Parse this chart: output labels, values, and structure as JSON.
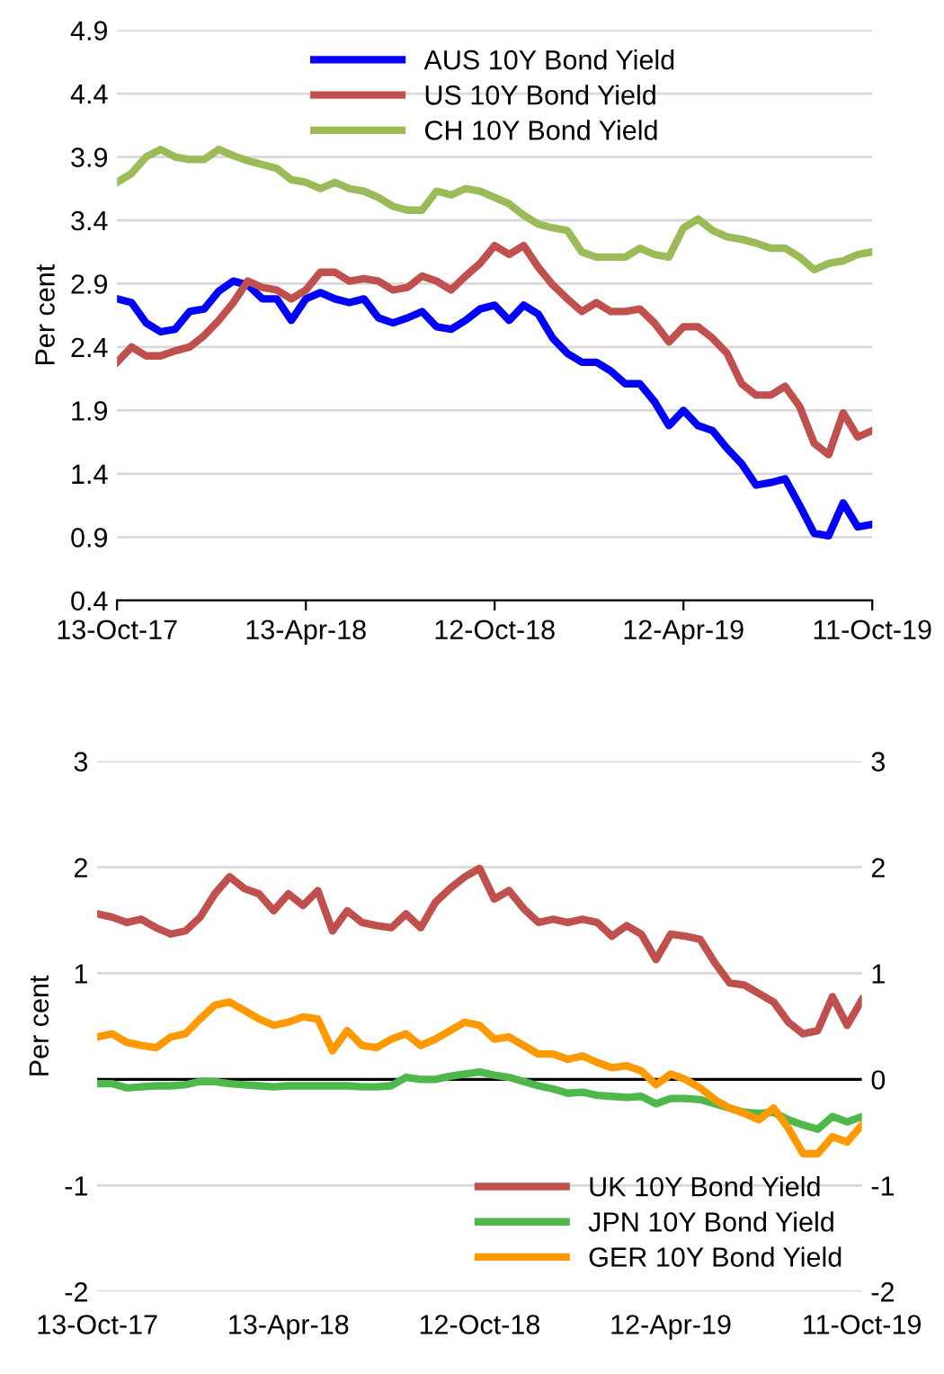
{
  "chart_data": [
    {
      "type": "line",
      "ylabel": "Per cent",
      "xlim": [
        "2017-10-13",
        "2019-10-11"
      ],
      "ylim": [
        0.4,
        4.9
      ],
      "yticks": [
        0.4,
        0.9,
        1.4,
        1.9,
        2.4,
        2.9,
        3.4,
        3.9,
        4.4,
        4.9
      ],
      "xticks": [
        {
          "value": "2017-10-13",
          "label": "13-Oct-17"
        },
        {
          "value": "2018-04-13",
          "label": "13-Apr-18"
        },
        {
          "value": "2018-10-12",
          "label": "12-Oct-18"
        },
        {
          "value": "2019-04-12",
          "label": "12-Apr-19"
        },
        {
          "value": "2019-10-11",
          "label": "11-Oct-19"
        }
      ],
      "grid": "y",
      "legend": "top",
      "line_style": "solid",
      "marker": "none",
      "x": [
        "2017-10-13",
        "2017-10-27",
        "2017-11-10",
        "2017-11-24",
        "2017-12-08",
        "2017-12-22",
        "2018-01-05",
        "2018-01-19",
        "2018-02-02",
        "2018-02-16",
        "2018-03-02",
        "2018-03-16",
        "2018-03-30",
        "2018-04-13",
        "2018-04-27",
        "2018-05-11",
        "2018-05-25",
        "2018-06-08",
        "2018-06-22",
        "2018-07-06",
        "2018-07-20",
        "2018-08-03",
        "2018-08-17",
        "2018-08-31",
        "2018-09-14",
        "2018-09-28",
        "2018-10-12",
        "2018-10-26",
        "2018-11-09",
        "2018-11-23",
        "2018-12-07",
        "2018-12-21",
        "2019-01-04",
        "2019-01-18",
        "2019-02-01",
        "2019-02-15",
        "2019-03-01",
        "2019-03-15",
        "2019-03-29",
        "2019-04-12",
        "2019-04-26",
        "2019-05-10",
        "2019-05-24",
        "2019-06-07",
        "2019-06-21",
        "2019-07-05",
        "2019-07-19",
        "2019-08-02",
        "2019-08-16",
        "2019-08-30",
        "2019-09-13",
        "2019-09-27",
        "2019-10-11"
      ],
      "series": [
        {
          "name": "AUS 10Y Bond Yield",
          "color": "#0000ff",
          "values": [
            2.78,
            2.75,
            2.59,
            2.52,
            2.54,
            2.68,
            2.7,
            2.84,
            2.92,
            2.89,
            2.78,
            2.78,
            2.61,
            2.78,
            2.83,
            2.78,
            2.75,
            2.78,
            2.63,
            2.59,
            2.63,
            2.68,
            2.56,
            2.54,
            2.61,
            2.7,
            2.73,
            2.61,
            2.73,
            2.66,
            2.47,
            2.35,
            2.28,
            2.28,
            2.21,
            2.11,
            2.11,
            1.97,
            1.78,
            1.9,
            1.78,
            1.74,
            1.6,
            1.48,
            1.31,
            1.33,
            1.36,
            1.15,
            0.93,
            0.91,
            1.17,
            0.98,
            1.0
          ]
        },
        {
          "name": "US 10Y Bond Yield",
          "color": "#c0504d",
          "values": [
            2.28,
            2.4,
            2.33,
            2.33,
            2.37,
            2.4,
            2.49,
            2.61,
            2.75,
            2.92,
            2.87,
            2.85,
            2.78,
            2.85,
            2.99,
            2.99,
            2.92,
            2.94,
            2.92,
            2.85,
            2.87,
            2.96,
            2.92,
            2.85,
            2.96,
            3.06,
            3.2,
            3.13,
            3.2,
            3.03,
            2.89,
            2.78,
            2.68,
            2.75,
            2.68,
            2.68,
            2.7,
            2.59,
            2.44,
            2.56,
            2.56,
            2.47,
            2.35,
            2.11,
            2.02,
            2.02,
            2.09,
            1.93,
            1.64,
            1.55,
            1.88,
            1.69,
            1.74
          ]
        },
        {
          "name": "CH 10Y Bond Yield",
          "color": "#9bbb59",
          "values": [
            3.7,
            3.77,
            3.9,
            3.96,
            3.9,
            3.88,
            3.88,
            3.96,
            3.91,
            3.87,
            3.84,
            3.81,
            3.72,
            3.7,
            3.65,
            3.7,
            3.65,
            3.63,
            3.58,
            3.51,
            3.48,
            3.48,
            3.63,
            3.6,
            3.65,
            3.63,
            3.58,
            3.53,
            3.44,
            3.37,
            3.34,
            3.32,
            3.15,
            3.11,
            3.11,
            3.11,
            3.18,
            3.13,
            3.11,
            3.34,
            3.41,
            3.32,
            3.27,
            3.25,
            3.22,
            3.18,
            3.18,
            3.11,
            3.01,
            3.06,
            3.08,
            3.13,
            3.15
          ]
        }
      ]
    },
    {
      "type": "line",
      "ylabel": "Per cent",
      "xlim": [
        "2017-10-13",
        "2019-10-11"
      ],
      "ylim": [
        -2,
        3
      ],
      "yticks": [
        -2,
        -1,
        1,
        2,
        3
      ],
      "y2lim": [
        -2,
        3
      ],
      "y2ticks": [
        -2,
        -1,
        0,
        1,
        2,
        3
      ],
      "xticks": [
        {
          "value": "2017-10-13",
          "label": "13-Oct-17"
        },
        {
          "value": "2018-04-13",
          "label": "13-Apr-18"
        },
        {
          "value": "2018-10-12",
          "label": "12-Oct-18"
        },
        {
          "value": "2019-04-12",
          "label": "12-Apr-19"
        },
        {
          "value": "2019-10-11",
          "label": "11-Oct-19"
        }
      ],
      "grid": "y",
      "legend": "bottom right",
      "line_style": "solid",
      "marker": "none",
      "x": [
        "2017-10-13",
        "2017-10-27",
        "2017-11-10",
        "2017-11-24",
        "2017-12-08",
        "2017-12-22",
        "2018-01-05",
        "2018-01-19",
        "2018-02-02",
        "2018-02-16",
        "2018-03-02",
        "2018-03-16",
        "2018-03-30",
        "2018-04-13",
        "2018-04-27",
        "2018-05-11",
        "2018-05-25",
        "2018-06-08",
        "2018-06-22",
        "2018-07-06",
        "2018-07-20",
        "2018-08-03",
        "2018-08-17",
        "2018-08-31",
        "2018-09-14",
        "2018-09-28",
        "2018-10-12",
        "2018-10-26",
        "2018-11-09",
        "2018-11-23",
        "2018-12-07",
        "2018-12-21",
        "2019-01-04",
        "2019-01-18",
        "2019-02-01",
        "2019-02-15",
        "2019-03-01",
        "2019-03-15",
        "2019-03-29",
        "2019-04-12",
        "2019-04-26",
        "2019-05-10",
        "2019-05-24",
        "2019-06-07",
        "2019-06-21",
        "2019-07-05",
        "2019-07-19",
        "2019-08-02",
        "2019-08-16",
        "2019-08-30",
        "2019-09-13",
        "2019-09-27",
        "2019-10-11"
      ],
      "series": [
        {
          "name": "UK 10Y Bond Yield",
          "color": "#c0504d",
          "axis": "y2",
          "values": [
            1.56,
            1.53,
            1.48,
            1.51,
            1.43,
            1.37,
            1.4,
            1.53,
            1.75,
            1.91,
            1.8,
            1.75,
            1.59,
            1.75,
            1.64,
            1.78,
            1.4,
            1.59,
            1.48,
            1.45,
            1.43,
            1.56,
            1.43,
            1.67,
            1.8,
            1.91,
            1.99,
            1.7,
            1.78,
            1.61,
            1.48,
            1.51,
            1.48,
            1.51,
            1.48,
            1.35,
            1.45,
            1.37,
            1.13,
            1.37,
            1.35,
            1.32,
            1.1,
            0.91,
            0.89,
            0.81,
            0.73,
            0.54,
            0.43,
            0.46,
            0.78,
            0.51,
            0.75
          ]
        },
        {
          "name": "JPN 10Y Bond Yield",
          "color": "#4fb84a",
          "axis": "y2",
          "values": [
            -0.04,
            -0.04,
            -0.08,
            -0.07,
            -0.06,
            -0.06,
            -0.05,
            -0.02,
            -0.02,
            -0.04,
            -0.05,
            -0.06,
            -0.07,
            -0.06,
            -0.06,
            -0.06,
            -0.06,
            -0.06,
            -0.07,
            -0.07,
            -0.06,
            0.02,
            0.0,
            0.0,
            0.03,
            0.05,
            0.07,
            0.04,
            0.02,
            -0.02,
            -0.06,
            -0.09,
            -0.13,
            -0.12,
            -0.15,
            -0.16,
            -0.17,
            -0.16,
            -0.23,
            -0.18,
            -0.18,
            -0.19,
            -0.23,
            -0.27,
            -0.31,
            -0.32,
            -0.31,
            -0.38,
            -0.43,
            -0.47,
            -0.35,
            -0.4,
            -0.35
          ]
        },
        {
          "name": "GER 10Y Bond Yield",
          "color": "#ff9900",
          "axis": "y2",
          "values": [
            0.4,
            0.43,
            0.35,
            0.32,
            0.3,
            0.4,
            0.43,
            0.57,
            0.7,
            0.73,
            0.65,
            0.57,
            0.51,
            0.54,
            0.59,
            0.57,
            0.27,
            0.46,
            0.32,
            0.3,
            0.38,
            0.43,
            0.32,
            0.38,
            0.46,
            0.54,
            0.51,
            0.38,
            0.4,
            0.32,
            0.24,
            0.24,
            0.19,
            0.22,
            0.16,
            0.11,
            0.13,
            0.08,
            -0.05,
            0.05,
            0.0,
            -0.08,
            -0.19,
            -0.27,
            -0.32,
            -0.38,
            -0.27,
            -0.46,
            -0.7,
            -0.7,
            -0.54,
            -0.59,
            -0.43
          ]
        }
      ]
    }
  ]
}
